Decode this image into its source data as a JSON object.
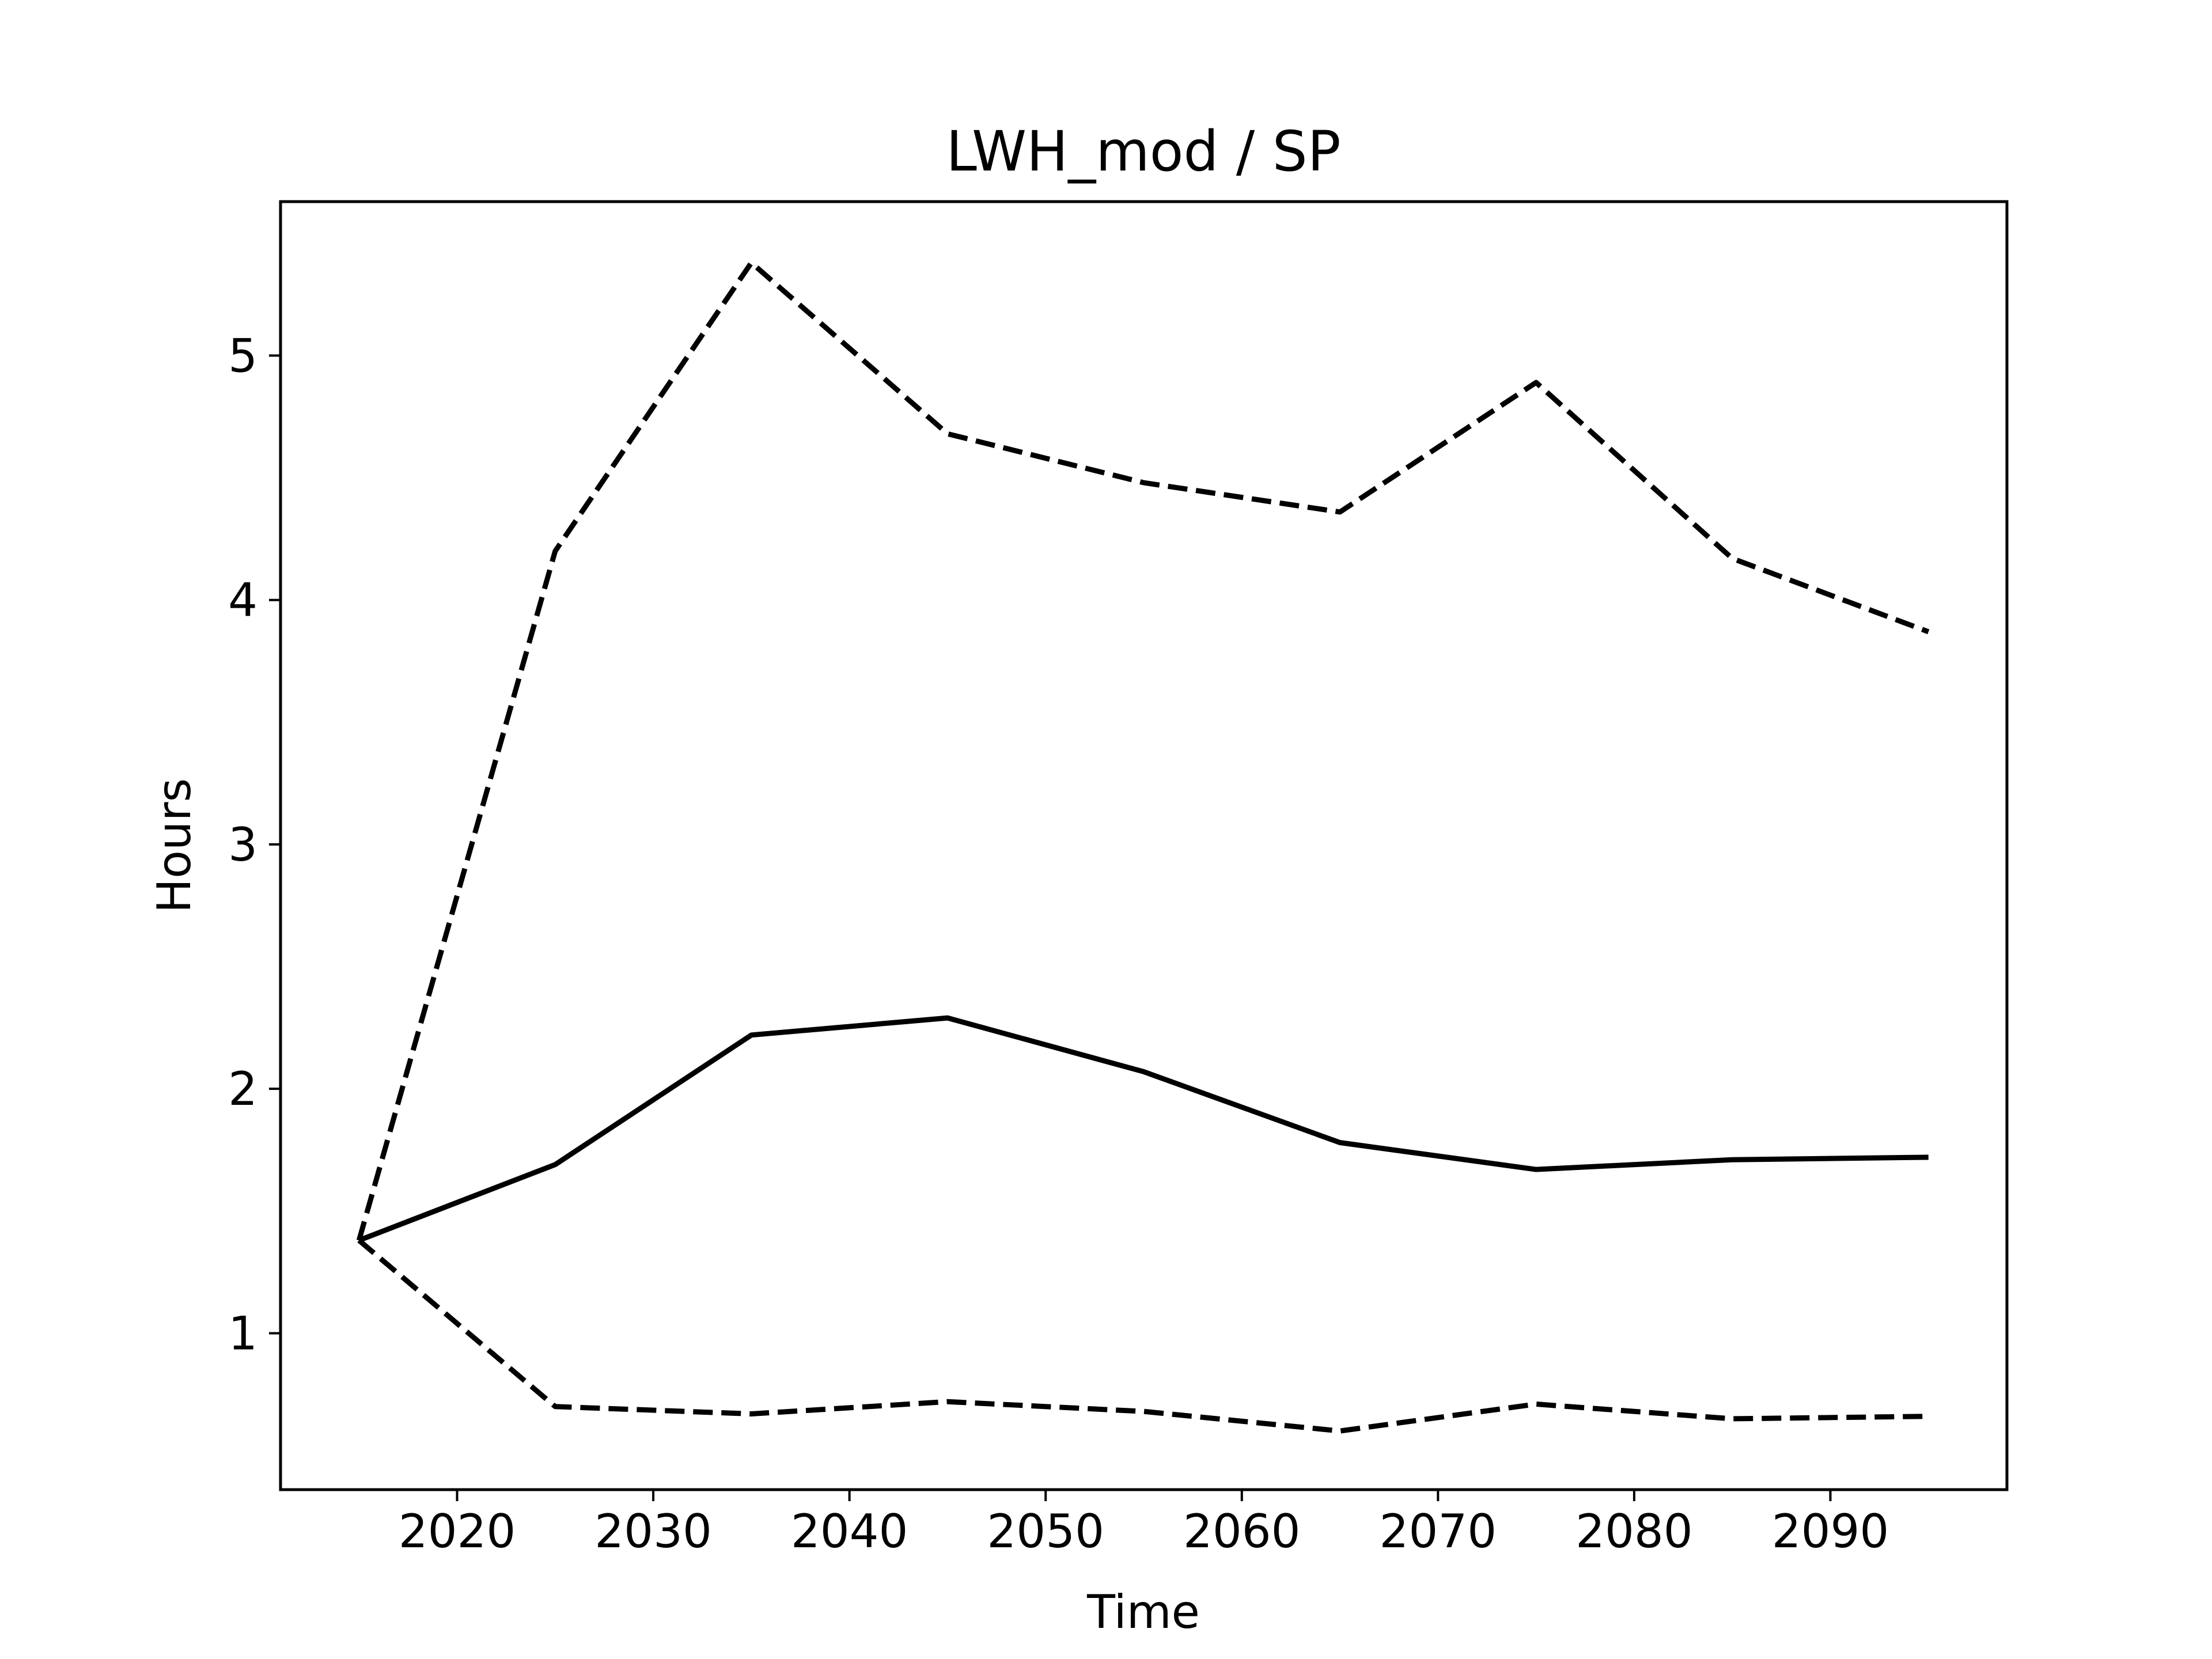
{
  "chart_data": {
    "type": "line",
    "title": "LWH_mod / SP",
    "xlabel": "Time",
    "ylabel": "Hours",
    "x": [
      2015,
      2025,
      2035,
      2045,
      2055,
      2065,
      2075,
      2085,
      2095
    ],
    "series": [
      {
        "style": "solid",
        "values": [
          1.38,
          1.69,
          2.22,
          2.29,
          2.07,
          1.78,
          1.67,
          1.71,
          1.72
        ]
      },
      {
        "style": "dashed",
        "values": [
          1.38,
          4.2,
          5.38,
          4.68,
          4.48,
          4.36,
          4.89,
          4.17,
          3.87
        ]
      },
      {
        "style": "dashed",
        "values": [
          1.38,
          0.7,
          0.67,
          0.72,
          0.68,
          0.6,
          0.71,
          0.65,
          0.66
        ]
      }
    ],
    "xticks": [
      "2020",
      "2030",
      "2040",
      "2050",
      "2060",
      "2070",
      "2080",
      "2090"
    ],
    "yticks": [
      "1",
      "2",
      "3",
      "4",
      "5"
    ],
    "xlim": [
      2011,
      2099
    ],
    "ylim": [
      0.36,
      5.63
    ],
    "grid": false,
    "legend": "none",
    "line_color": "#000000"
  }
}
